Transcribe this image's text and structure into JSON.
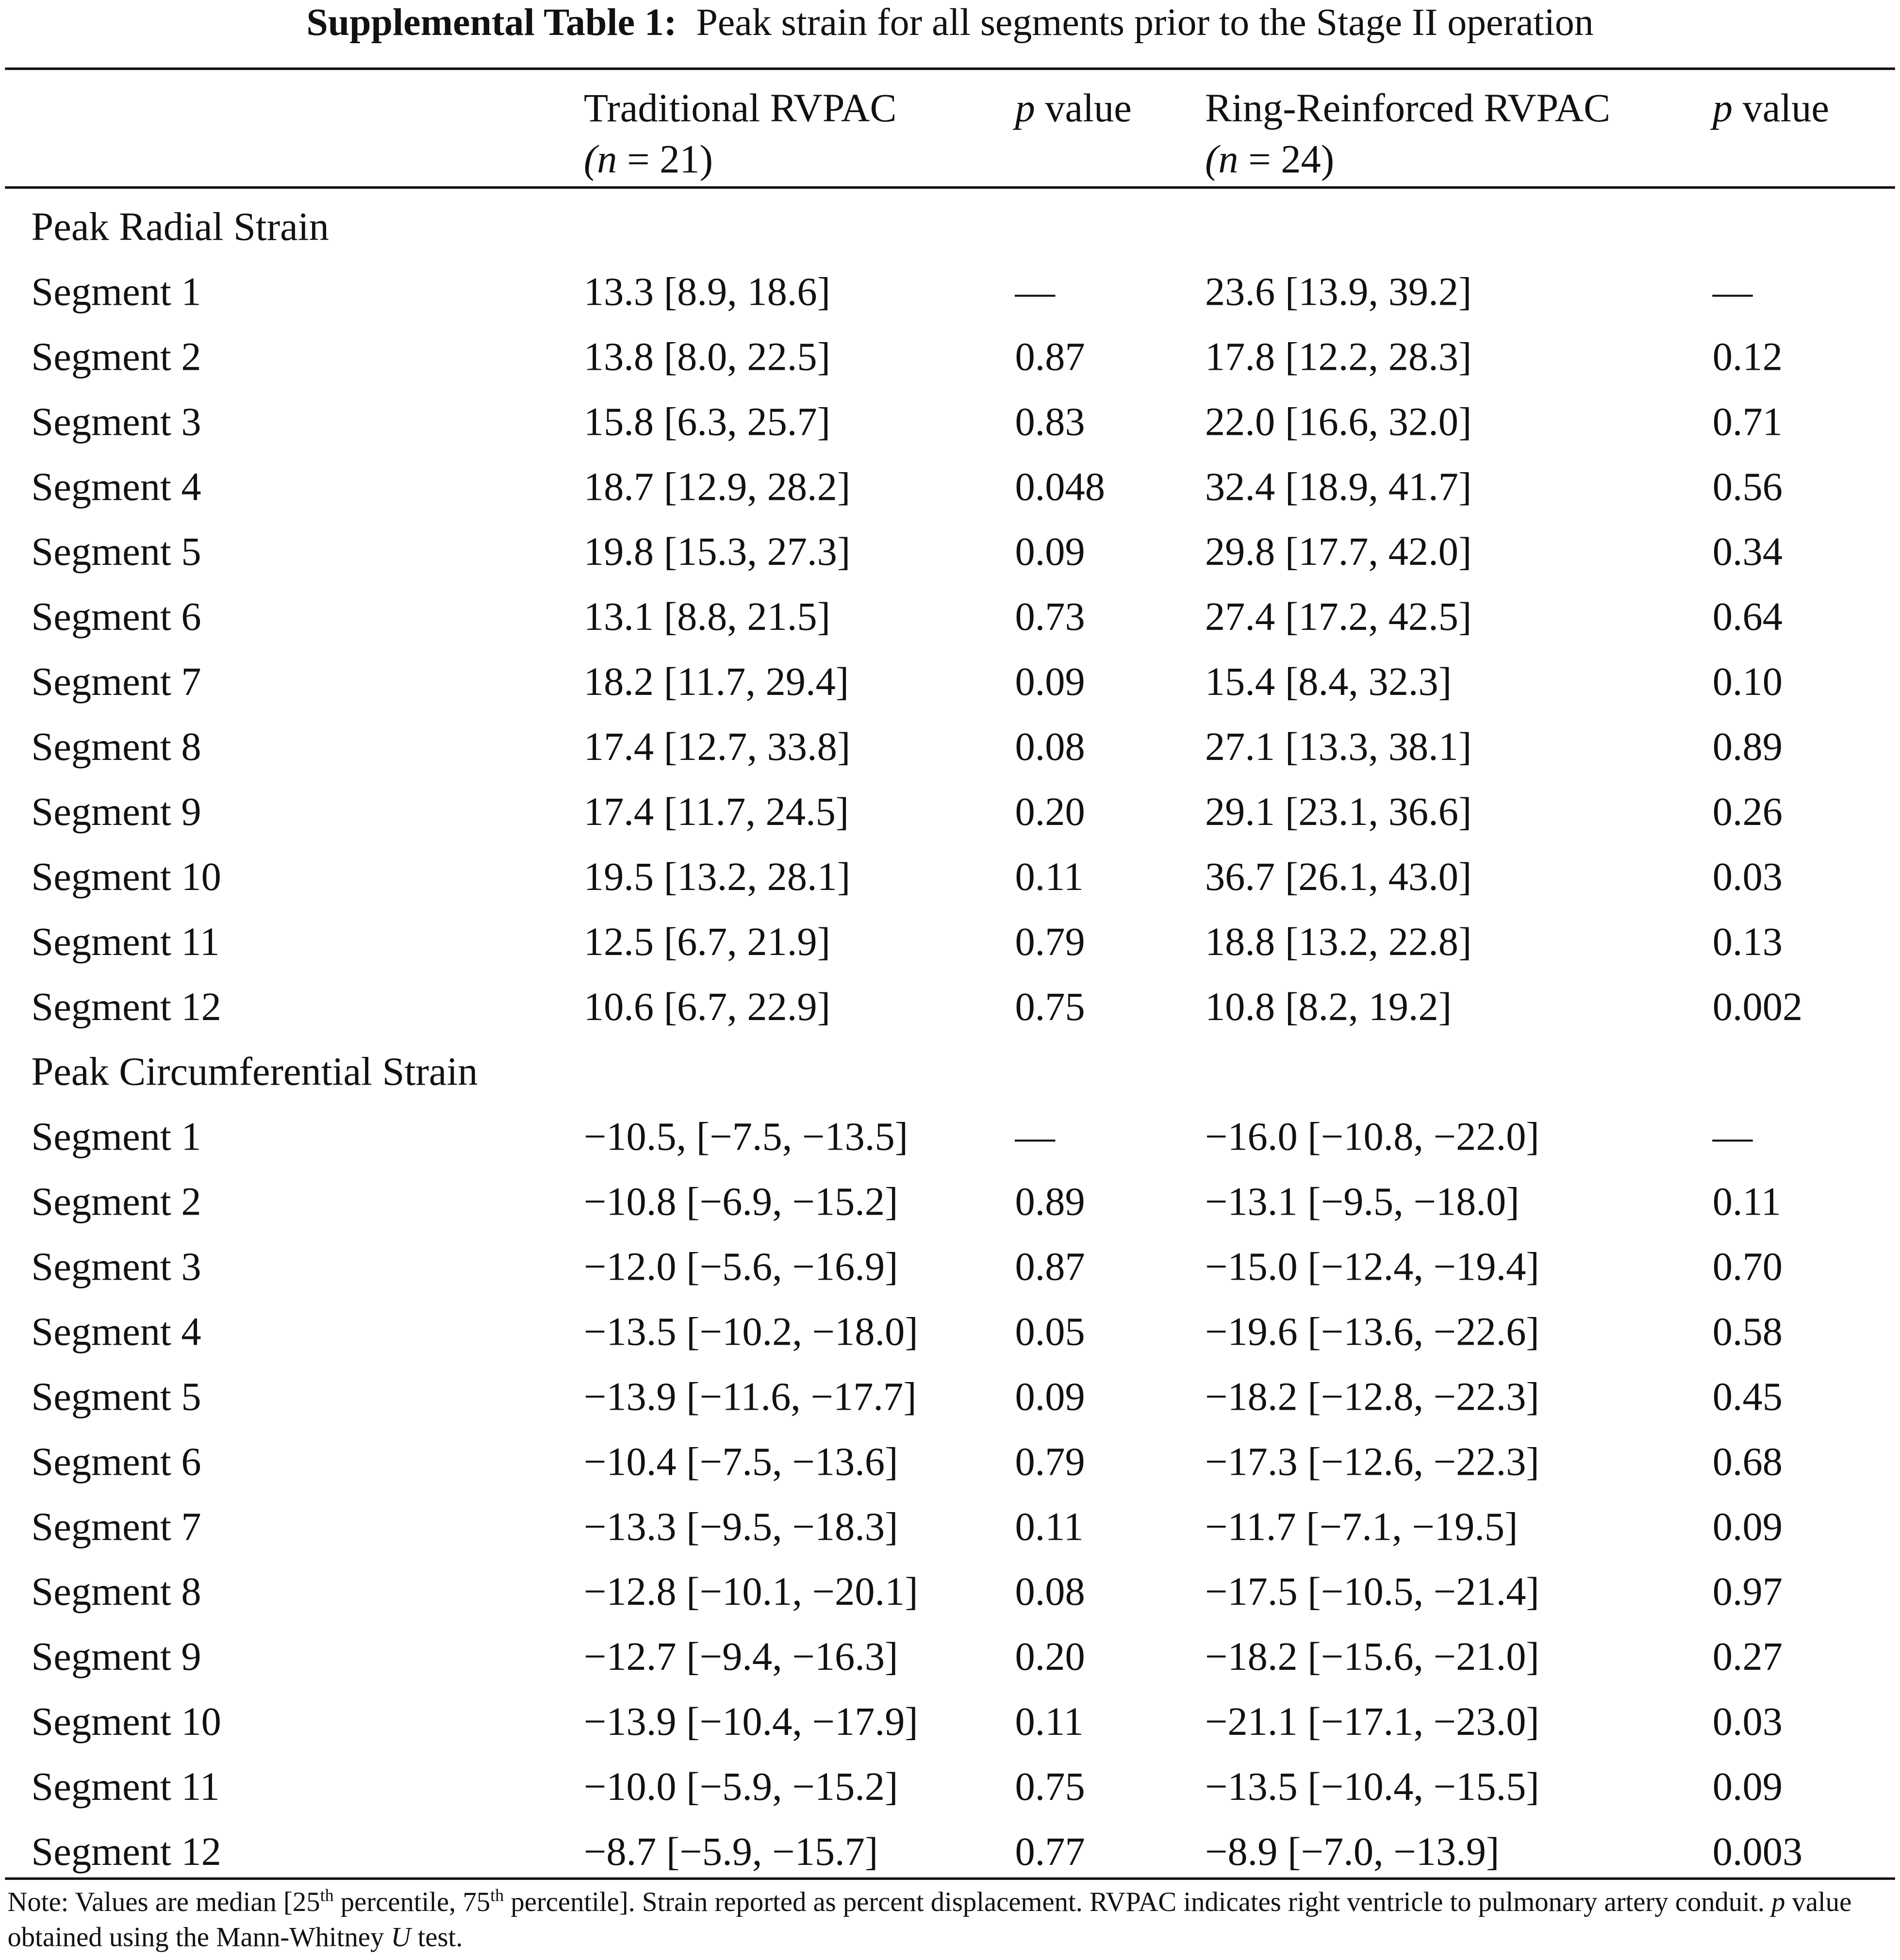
{
  "title": {
    "label": "Supplemental Table 1:",
    "text": "Peak strain for all segments prior to the Stage II operation"
  },
  "header": [
    {
      "line1": [
        "Traditional RVPAC"
      ],
      "line2": [
        "(",
        "n",
        " = 21)"
      ]
    },
    {
      "line1": [
        "p",
        " value"
      ],
      "line2": []
    },
    {
      "line1": [
        "Ring-Reinforced RVPAC"
      ],
      "line2": [
        "(",
        "n",
        " = 24)"
      ]
    },
    {
      "line1": [
        "p",
        " value"
      ],
      "line2": []
    }
  ],
  "sections": [
    {
      "title": "Peak Radial Strain",
      "rows": [
        [
          "Segment 1",
          "13.3 [8.9, 18.6]",
          "—",
          "23.6 [13.9, 39.2]",
          "—"
        ],
        [
          "Segment 2",
          "13.8 [8.0, 22.5]",
          "0.87",
          "17.8 [12.2, 28.3]",
          "0.12"
        ],
        [
          "Segment 3",
          "15.8 [6.3, 25.7]",
          "0.83",
          "22.0 [16.6, 32.0]",
          "0.71"
        ],
        [
          "Segment 4",
          "18.7 [12.9, 28.2]",
          "0.048",
          "32.4 [18.9, 41.7]",
          "0.56"
        ],
        [
          "Segment 5",
          "19.8 [15.3, 27.3]",
          "0.09",
          "29.8 [17.7, 42.0]",
          "0.34"
        ],
        [
          "Segment 6",
          "13.1 [8.8, 21.5]",
          "0.73",
          "27.4 [17.2, 42.5]",
          "0.64"
        ],
        [
          "Segment 7",
          "18.2 [11.7, 29.4]",
          "0.09",
          "15.4 [8.4, 32.3]",
          "0.10"
        ],
        [
          "Segment 8",
          "17.4 [12.7, 33.8]",
          "0.08",
          "27.1 [13.3, 38.1]",
          "0.89"
        ],
        [
          "Segment 9",
          "17.4 [11.7, 24.5]",
          "0.20",
          "29.1 [23.1, 36.6]",
          "0.26"
        ],
        [
          "Segment 10",
          "19.5 [13.2, 28.1]",
          "0.11",
          "36.7 [26.1, 43.0]",
          "0.03"
        ],
        [
          "Segment 11",
          "12.5 [6.7, 21.9]",
          "0.79",
          "18.8 [13.2, 22.8]",
          "0.13"
        ],
        [
          "Segment 12",
          "10.6 [6.7, 22.9]",
          "0.75",
          "10.8 [8.2, 19.2]",
          "0.002"
        ]
      ]
    },
    {
      "title": "Peak Circumferential Strain",
      "rows": [
        [
          "Segment 1",
          "−10.5, [−7.5, −13.5]",
          "—",
          "−16.0 [−10.8, −22.0]",
          "—"
        ],
        [
          "Segment 2",
          "−10.8 [−6.9, −15.2]",
          "0.89",
          "−13.1 [−9.5, −18.0]",
          "0.11"
        ],
        [
          "Segment 3",
          "−12.0 [−5.6, −16.9]",
          "0.87",
          "−15.0 [−12.4, −19.4]",
          "0.70"
        ],
        [
          "Segment 4",
          "−13.5 [−10.2, −18.0]",
          "0.05",
          "−19.6 [−13.6, −22.6]",
          "0.58"
        ],
        [
          "Segment 5",
          "−13.9 [−11.6, −17.7]",
          "0.09",
          "−18.2 [−12.8, −22.3]",
          "0.45"
        ],
        [
          "Segment 6",
          "−10.4 [−7.5, −13.6]",
          "0.79",
          "−17.3 [−12.6, −22.3]",
          "0.68"
        ],
        [
          "Segment 7",
          "−13.3 [−9.5, −18.3]",
          "0.11",
          "−11.7 [−7.1, −19.5]",
          "0.09"
        ],
        [
          "Segment 8",
          "−12.8 [−10.1, −20.1]",
          "0.08",
          "−17.5 [−10.5, −21.4]",
          "0.97"
        ],
        [
          "Segment 9",
          "−12.7 [−9.4, −16.3]",
          "0.20",
          "−18.2 [−15.6, −21.0]",
          "0.27"
        ],
        [
          "Segment 10",
          "−13.9 [−10.4, −17.9]",
          "0.11",
          "−21.1 [−17.1, −23.0]",
          "0.03"
        ],
        [
          "Segment 11",
          "−10.0 [−5.9, −15.2]",
          "0.75",
          "−13.5 [−10.4, −15.5]",
          "0.09"
        ],
        [
          "Segment 12",
          "−8.7 [−5.9, −15.7]",
          "0.77",
          "−8.9 [−7.0, −13.9]",
          "0.003"
        ]
      ]
    }
  ],
  "note": [
    "Note: Values are median [25",
    "th",
    " percentile, 75",
    "th",
    " percentile]. Strain reported as percent displacement. RVPAC indicates right ventricle to pulmonary artery conduit. ",
    "p",
    " value obtained using the Mann-Whitney ",
    "U",
    " test."
  ]
}
